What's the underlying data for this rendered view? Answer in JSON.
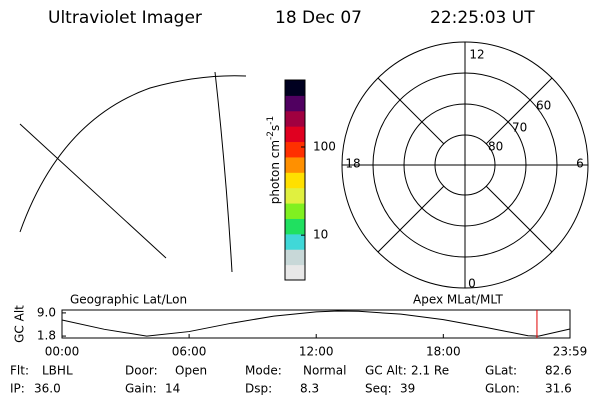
{
  "header": {
    "instrument": "Ultraviolet Imager",
    "date": "18 Dec 07",
    "time": "22:25:03 UT"
  },
  "colorbar": {
    "label": [
      "photon cm",
      "-2",
      "s",
      "-1"
    ],
    "log": true,
    "lim": [
      3.1,
      575
    ],
    "ticks": [
      10,
      100
    ],
    "colors": [
      "#e8e8e8",
      "#c8d8d8",
      "#40d8d8",
      "#20e060",
      "#80f020",
      "#e0f040",
      "#ffe000",
      "#ff9000",
      "#ff3000",
      "#e00020",
      "#a00040",
      "#500060",
      "#000020"
    ]
  },
  "polar": {
    "mlt_labels": [
      "12",
      "18",
      "6",
      "0"
    ],
    "lat_labels": [
      "80",
      "70",
      "60"
    ]
  },
  "panels": {
    "left": "Geographic Lat/Lon",
    "right": "Apex MLat/MLT"
  },
  "chart_data": {
    "type": "line",
    "ylabel": "GC Alt",
    "x": [
      0,
      2,
      4,
      6,
      8,
      10,
      12,
      13,
      14,
      16,
      18,
      20,
      22,
      22.5,
      23.98
    ],
    "values": [
      6.8,
      3.9,
      1.8,
      3.2,
      5.8,
      8.0,
      9.3,
      9.6,
      9.5,
      8.6,
      6.9,
      4.5,
      1.9,
      1.8,
      4.0
    ],
    "color": "#000000",
    "marker_x": 22.42,
    "marker_color": "#e00000",
    "xlim": [
      0,
      23.98
    ],
    "ylim": [
      1.2,
      9.9
    ],
    "xticks": [
      {
        "value": 0,
        "label": "00:00"
      },
      {
        "value": 6,
        "label": "06:00"
      },
      {
        "value": 12,
        "label": "12:00"
      },
      {
        "value": 18,
        "label": "18:00"
      },
      {
        "value": 23.98,
        "label": "23:59"
      }
    ],
    "yticks": [
      {
        "value": 1.8,
        "label": "1.8"
      },
      {
        "value": 9.0,
        "label": "9.0"
      }
    ]
  },
  "footer": {
    "rows": [
      [
        {
          "label": "Flt:",
          "value": "LBHL"
        },
        {
          "label": "Door:",
          "value": "Open"
        },
        {
          "label": "Mode:",
          "value": "Normal"
        },
        {
          "label": "GC Alt:",
          "value": "2.1 Re"
        },
        {
          "label": "GLat:",
          "value": "82.6"
        }
      ],
      [
        {
          "label": "IP:",
          "value": "36.0"
        },
        {
          "label": "Gain:",
          "value": "14"
        },
        {
          "label": "Dsp:",
          "value": "8.3"
        },
        {
          "label": "Seq:",
          "value": "39"
        },
        {
          "label": "GLon:",
          "value": "31.6"
        }
      ]
    ]
  }
}
